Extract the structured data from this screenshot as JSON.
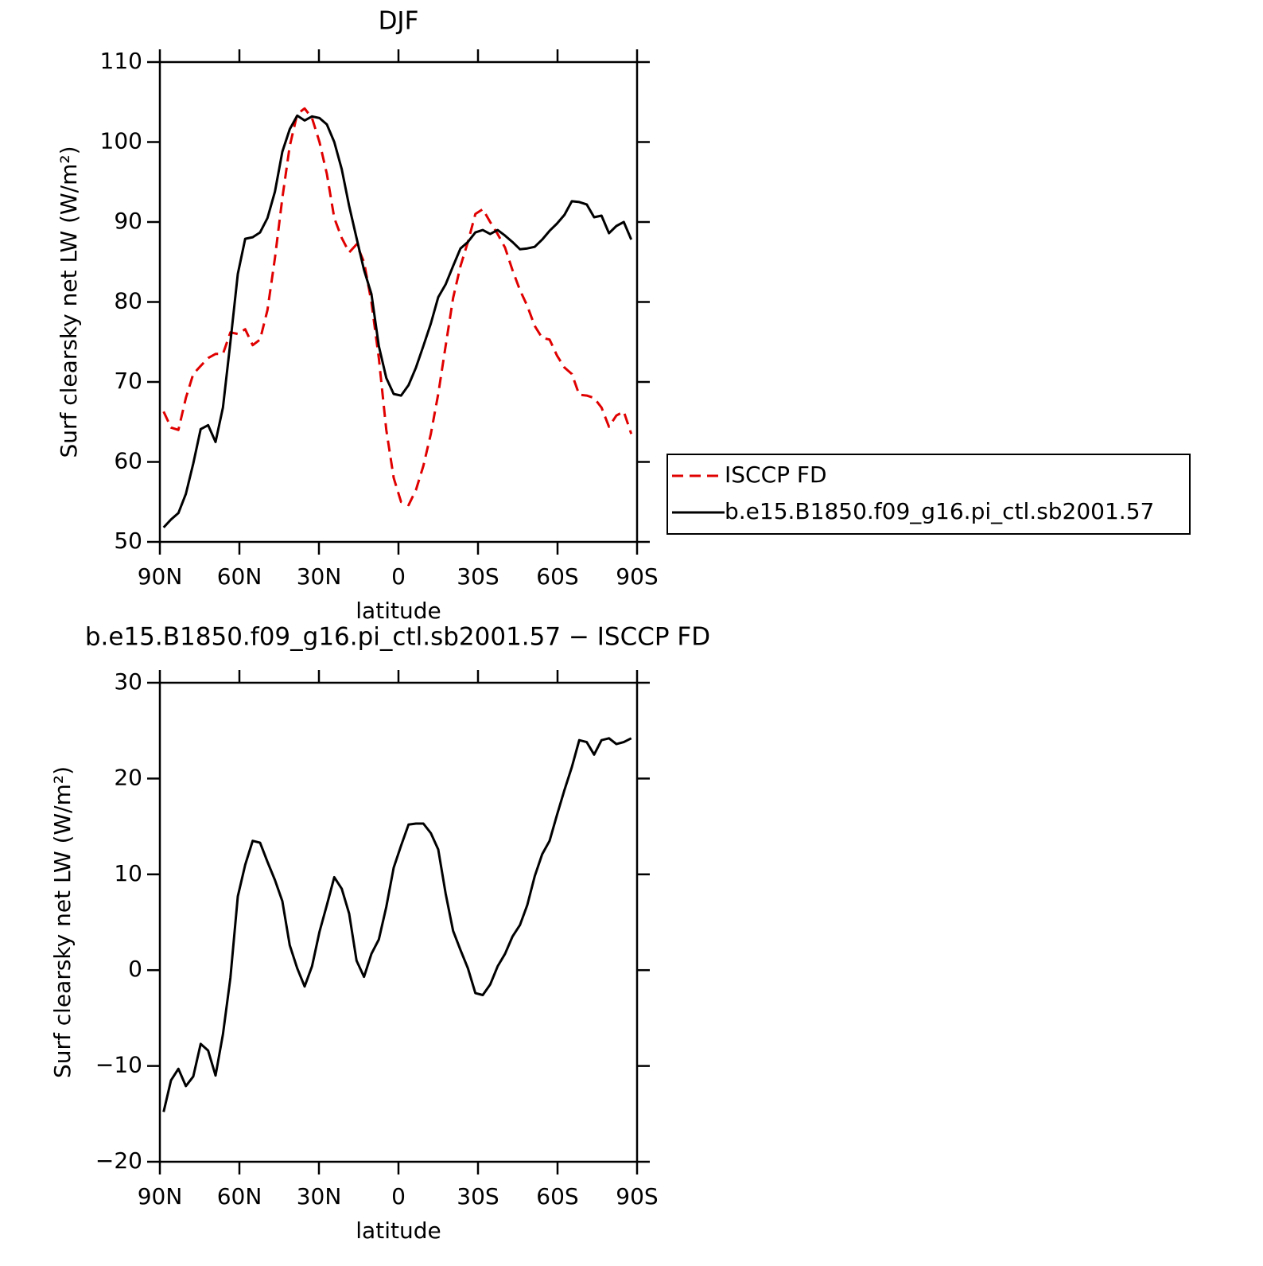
{
  "chart_data": [
    {
      "type": "line",
      "title": "DJF",
      "xlabel": "latitude",
      "ylabel": "Surf clearsky net LW (W/m²)",
      "x": [
        88.6,
        85.8,
        83,
        80.2,
        77.4,
        74.6,
        71.8,
        69,
        66.2,
        63.4,
        60.6,
        57.8,
        55,
        52.2,
        49.4,
        46.6,
        43.8,
        41,
        38.2,
        35.4,
        32.6,
        29.8,
        27,
        24.2,
        21.4,
        18.6,
        15.8,
        13,
        10.2,
        7.4,
        4.6,
        1.8,
        -1,
        -3.8,
        -6.6,
        -9.4,
        -12.2,
        -15,
        -17.8,
        -20.6,
        -23.4,
        -26.2,
        -29,
        -31.8,
        -34.6,
        -37.4,
        -40.2,
        -43,
        -45.8,
        -48.6,
        -51.4,
        -54.2,
        -57,
        -59.8,
        -62.6,
        -65.4,
        -68.2,
        -71,
        -73.8,
        -76.6,
        -79.4,
        -82.2,
        -85,
        -87.8
      ],
      "series": [
        {
          "name": "ISCCP FD",
          "color": "#e00000",
          "style": "dashed",
          "values": [
            66.3,
            64.3,
            64,
            68,
            71,
            72,
            73,
            73.5,
            73.5,
            76.2,
            76,
            76.6,
            74.6,
            75.3,
            79,
            85.5,
            93,
            99.5,
            103.5,
            104.2,
            103,
            100,
            96,
            90.5,
            88,
            86.2,
            87.2,
            85,
            80,
            73,
            64,
            58,
            55,
            54.6,
            56.5,
            59.5,
            63.5,
            68.5,
            74.5,
            80.5,
            84.5,
            87.5,
            91,
            91.6,
            90,
            88.5,
            86.8,
            84,
            81.5,
            79.5,
            77,
            75.5,
            75.3,
            73.3,
            71.8,
            71,
            68.4,
            68.3,
            68,
            66.8,
            64.4,
            65.8,
            66.3,
            63.5
          ]
        },
        {
          "name": "b.e15.B1850.f09_g16.pi_ctl.sb2001.57",
          "color": "#000000",
          "style": "solid",
          "values": [
            51.8,
            52.8,
            53.6,
            56,
            59.8,
            64.1,
            64.6,
            62.5,
            66.8,
            75,
            83.5,
            87.9,
            88.1,
            88.7,
            90.5,
            93.8,
            98.8,
            101.6,
            103.3,
            102.7,
            103.2,
            103,
            102.2,
            100,
            96.6,
            92,
            88,
            84,
            81,
            74.5,
            70.5,
            68.5,
            68.3,
            69.6,
            71.8,
            74.5,
            77.3,
            80.6,
            82.2,
            84.5,
            86.7,
            87.5,
            88.7,
            89,
            88.5,
            89,
            88.3,
            87.5,
            86.6,
            86.7,
            86.9,
            87.8,
            88.9,
            89.8,
            90.9,
            92.6,
            92.5,
            92.2,
            90.6,
            90.8,
            88.6,
            89.5,
            90,
            87.8
          ]
        }
      ],
      "xlim": [
        90,
        -90
      ],
      "xticks": [
        {
          "value": 90,
          "label": "90N"
        },
        {
          "value": 60,
          "label": "60N"
        },
        {
          "value": 30,
          "label": "30N"
        },
        0,
        {
          "value": -30,
          "label": "30S"
        },
        {
          "value": -60,
          "label": "60S"
        },
        {
          "value": -90,
          "label": "90S"
        }
      ],
      "ylim": [
        50,
        110
      ],
      "yticks": [
        50,
        60,
        70,
        80,
        90,
        100,
        110
      ],
      "legend": "right"
    },
    {
      "type": "line",
      "title": "b.e15.B1850.f09_g16.pi_ctl.sb2001.57 − ISCCP FD",
      "xlabel": "latitude",
      "ylabel": "Surf clearsky net LW (W/m²)",
      "x": [
        88.6,
        85.8,
        83,
        80.2,
        77.4,
        74.6,
        71.8,
        69,
        66.2,
        63.4,
        60.6,
        57.8,
        55,
        52.2,
        49.4,
        46.6,
        43.8,
        41,
        38.2,
        35.4,
        32.6,
        29.8,
        27,
        24.2,
        21.4,
        18.6,
        15.8,
        13,
        10.2,
        7.4,
        4.6,
        1.8,
        -1,
        -3.8,
        -6.6,
        -9.4,
        -12.2,
        -15,
        -17.8,
        -20.6,
        -23.4,
        -26.2,
        -29,
        -31.8,
        -34.6,
        -37.4,
        -40.2,
        -43,
        -45.8,
        -48.6,
        -51.4,
        -54.2,
        -57,
        -59.8,
        -62.6,
        -65.4,
        -68.2,
        -71,
        -73.8,
        -76.6,
        -79.4,
        -82.2,
        -85,
        -87.8
      ],
      "series": [
        {
          "color": "#000000",
          "style": "solid",
          "values": [
            -14.8,
            -11.5,
            -10.3,
            -12.1,
            -11.1,
            -7.7,
            -8.4,
            -11,
            -6.7,
            -0.8,
            7.7,
            11,
            13.5,
            13.3,
            11.3,
            9.4,
            7.2,
            2.6,
            0.2,
            -1.7,
            0.4,
            4,
            6.8,
            9.7,
            8.5,
            5.9,
            1,
            -0.7,
            1.7,
            3.2,
            6.6,
            10.7,
            13,
            15.2,
            15.3,
            15.3,
            14.3,
            12.6,
            8,
            4.1,
            2.1,
            0.2,
            -2.4,
            -2.6,
            -1.5,
            0.4,
            1.7,
            3.5,
            4.7,
            6.8,
            9.8,
            12.1,
            13.5,
            16.2,
            18.8,
            21.2,
            24,
            23.8,
            22.5,
            24,
            24.2,
            23.6,
            23.8,
            24.2
          ]
        }
      ],
      "xlim": [
        90,
        -90
      ],
      "xticks": [
        {
          "value": 90,
          "label": "90N"
        },
        {
          "value": 60,
          "label": "60N"
        },
        {
          "value": 30,
          "label": "30N"
        },
        0,
        {
          "value": -30,
          "label": "30S"
        },
        {
          "value": -60,
          "label": "60S"
        },
        {
          "value": -90,
          "label": "90S"
        }
      ],
      "ylim": [
        -20,
        30
      ],
      "yticks": [
        {
          "value": -20,
          "label": "−20"
        },
        {
          "value": -10,
          "label": "−10"
        },
        0,
        10,
        20,
        30
      ]
    }
  ]
}
